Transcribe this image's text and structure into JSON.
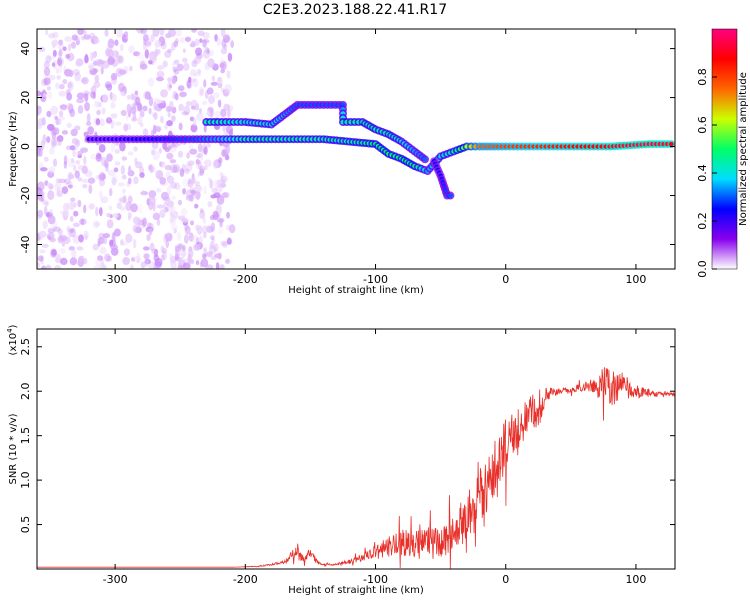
{
  "figure": {
    "title": "C2E3.2023.188.22.41.R17"
  },
  "chart_data": [
    {
      "type": "heatmap",
      "title": "C2E3.2023.188.22.41.R17",
      "xlabel": "Height of straight line (km)",
      "ylabel": "Frequency (Hz)",
      "xlim": [
        -360,
        130
      ],
      "ylim": [
        -50,
        48
      ],
      "xticks": [
        -300,
        -200,
        -100,
        0,
        100
      ],
      "yticks": [
        -40,
        -20,
        0,
        20,
        40
      ],
      "grid": false,
      "colorbar": {
        "label": "Normalized spectral amplitude",
        "range": [
          0.0,
          1.0
        ],
        "ticks": [
          0.0,
          0.2,
          0.4,
          0.6,
          0.8
        ],
        "colormap": "rainbow (white-violet-blue-cyan-green-yellow-red-magenta)",
        "colors": [
          "#ffffff",
          "#8800ee",
          "#0000ff",
          "#00ddff",
          "#00ff66",
          "#ccff00",
          "#ff6600",
          "#ff0000",
          "#ff0080"
        ]
      },
      "features": [
        {
          "name": "noise",
          "x_range": [
            -360,
            -210
          ],
          "y_range": [
            -50,
            48
          ],
          "amplitude": 0.05
        },
        {
          "name": "main-track",
          "points": [
            [
              -320,
              3
            ],
            [
              -280,
              3
            ],
            [
              -240,
              3
            ],
            [
              -220,
              3
            ],
            [
              -200,
              3
            ],
            [
              -180,
              3
            ],
            [
              -160,
              3
            ],
            [
              -140,
              3
            ],
            [
              -120,
              2
            ],
            [
              -100,
              1
            ],
            [
              -90,
              -3
            ],
            [
              -80,
              -5
            ],
            [
              -70,
              -8
            ],
            [
              -60,
              -10
            ],
            [
              -50,
              -4
            ],
            [
              -40,
              -2
            ],
            [
              -30,
              0
            ],
            [
              -20,
              0
            ],
            [
              0,
              0
            ],
            [
              40,
              0
            ],
            [
              80,
              0
            ],
            [
              110,
              1
            ],
            [
              130,
              1
            ]
          ],
          "amplitude": [
            0.2,
            0.25,
            0.3,
            0.35,
            0.45,
            0.45,
            0.45,
            0.45,
            0.45,
            0.5,
            0.5,
            0.5,
            0.5,
            0.35,
            0.4,
            0.45,
            0.6,
            0.75,
            0.8,
            0.85,
            0.9,
            0.95,
            0.9
          ]
        },
        {
          "name": "upper-track",
          "points": [
            [
              -230,
              10
            ],
            [
              -200,
              10
            ],
            [
              -180,
              9
            ],
            [
              -160,
              17
            ],
            [
              -140,
              17
            ],
            [
              -125,
              17
            ],
            [
              -125,
              10
            ],
            [
              -110,
              10
            ],
            [
              -100,
              7
            ],
            [
              -90,
              5
            ],
            [
              -80,
              2
            ],
            [
              -70,
              -2
            ],
            [
              -60,
              -6
            ]
          ],
          "amplitude": [
            0.45,
            0.4,
            0.4,
            0.3,
            0.3,
            0.3,
            0.45,
            0.45,
            0.45,
            0.45,
            0.4,
            0.35,
            0.3
          ]
        },
        {
          "name": "lower-spur",
          "points": [
            [
              -55,
              -6
            ],
            [
              -50,
              -12
            ],
            [
              -45,
              -20
            ],
            [
              -40,
              -20
            ]
          ],
          "amplitude": [
            0.25,
            0.25,
            0.3,
            0.3
          ]
        }
      ]
    },
    {
      "type": "line",
      "xlabel": "Height of straight line (km)",
      "ylabel": "SNR (10 * v/v)",
      "multiplier_label": "(x10",
      "multiplier_exp": "4",
      "multiplier_close": ")",
      "xlim": [
        -360,
        130
      ],
      "ylim": [
        0,
        2.7
      ],
      "y_unit_scale": 10000,
      "xticks": [
        -300,
        -200,
        -100,
        0,
        100
      ],
      "yticks": [
        0.5,
        1.0,
        1.5,
        2.0,
        2.5
      ],
      "ytick_labels": [
        "0.5",
        "1.0",
        "1.5",
        "2.0",
        "2.5"
      ],
      "color": "#e8302a",
      "grid": false,
      "series": [
        {
          "x": [
            -360,
            -300,
            -250,
            -210,
            -190,
            -180,
            -170,
            -165,
            -160,
            -155,
            -150,
            -145,
            -140,
            -130,
            -120,
            -110,
            -100,
            -90,
            -80,
            -70,
            -60,
            -50,
            -45,
            -40,
            -35,
            -30,
            -25,
            -20,
            -15,
            -10,
            -5,
            0,
            5,
            10,
            15,
            20,
            25,
            30,
            40,
            50,
            60,
            70,
            75,
            80,
            85,
            90,
            100,
            110,
            120,
            130
          ],
          "y": [
            0.02,
            0.02,
            0.02,
            0.02,
            0.03,
            0.05,
            0.08,
            0.15,
            0.2,
            0.1,
            0.2,
            0.08,
            0.05,
            0.05,
            0.08,
            0.12,
            0.18,
            0.25,
            0.3,
            0.28,
            0.32,
            0.3,
            0.35,
            0.45,
            0.5,
            0.55,
            0.65,
            0.85,
            0.9,
            1.1,
            1.2,
            1.4,
            1.6,
            1.5,
            1.7,
            1.8,
            1.7,
            1.95,
            2.0,
            2.02,
            2.05,
            2.05,
            2.1,
            2.05,
            2.0,
            2.1,
            2.0,
            1.98,
            1.97,
            1.96
          ],
          "noise": [
            0,
            0,
            0,
            0,
            0.005,
            0.01,
            0.02,
            0.05,
            0.1,
            0.03,
            0.06,
            0.02,
            0.01,
            0.01,
            0.03,
            0.05,
            0.08,
            0.12,
            0.15,
            0.15,
            0.17,
            0.17,
            0.2,
            0.22,
            0.22,
            0.25,
            0.28,
            0.3,
            0.3,
            0.3,
            0.3,
            0.3,
            0.25,
            0.25,
            0.2,
            0.2,
            0.15,
            0.1,
            0.03,
            0.03,
            0.05,
            0.12,
            0.2,
            0.22,
            0.2,
            0.12,
            0.08,
            0.04,
            0.02,
            0.02
          ]
        }
      ]
    }
  ]
}
